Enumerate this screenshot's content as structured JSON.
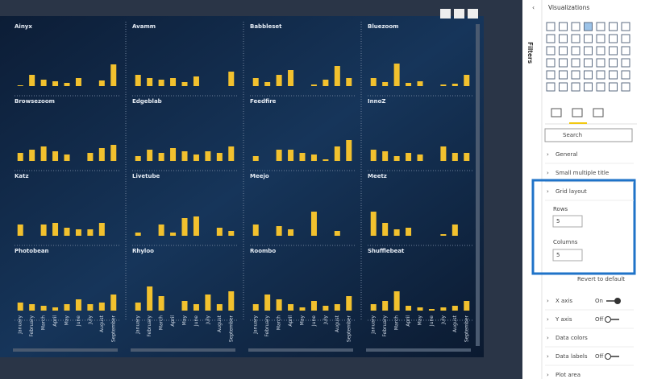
{
  "chart_data": {
    "type": "bar",
    "color": "#f2c12e",
    "categories": [
      "January",
      "February",
      "March",
      "April",
      "May",
      "June",
      "July",
      "August",
      "September"
    ],
    "series": [
      {
        "name": "Ainyx",
        "values": [
          1,
          14,
          8,
          6,
          4,
          10,
          0,
          7,
          27
        ]
      },
      {
        "name": "Avamm",
        "values": [
          14,
          10,
          8,
          10,
          5,
          12,
          0,
          0,
          18
        ]
      },
      {
        "name": "Babbleset",
        "values": [
          10,
          5,
          14,
          20,
          0,
          2,
          8,
          25,
          10
        ]
      },
      {
        "name": "Bluezoom",
        "values": [
          10,
          5,
          28,
          4,
          6,
          0,
          2,
          3,
          14
        ]
      },
      {
        "name": "Browsezoom",
        "values": [
          10,
          14,
          18,
          12,
          8,
          0,
          10,
          16,
          20
        ]
      },
      {
        "name": "Edgeblab",
        "values": [
          6,
          14,
          10,
          16,
          12,
          8,
          12,
          10,
          18
        ]
      },
      {
        "name": "Feedfire",
        "values": [
          6,
          0,
          14,
          14,
          10,
          8,
          2,
          18,
          26
        ]
      },
      {
        "name": "InnoZ",
        "values": [
          14,
          12,
          6,
          10,
          8,
          0,
          18,
          10,
          10
        ]
      },
      {
        "name": "Katz",
        "values": [
          14,
          0,
          14,
          16,
          10,
          8,
          8,
          16,
          0
        ]
      },
      {
        "name": "Livetube",
        "values": [
          4,
          0,
          14,
          4,
          22,
          24,
          0,
          10,
          6
        ]
      },
      {
        "name": "Meejo",
        "values": [
          14,
          0,
          12,
          8,
          0,
          30,
          0,
          6,
          0
        ]
      },
      {
        "name": "Meetz",
        "values": [
          30,
          16,
          8,
          10,
          0,
          0,
          2,
          14,
          0
        ]
      },
      {
        "name": "Photobean",
        "values": [
          10,
          8,
          6,
          4,
          8,
          14,
          8,
          10,
          20
        ]
      },
      {
        "name": "Rhyloo",
        "values": [
          10,
          30,
          18,
          0,
          12,
          8,
          20,
          8,
          24
        ]
      },
      {
        "name": "Roombo",
        "values": [
          8,
          20,
          14,
          8,
          4,
          12,
          6,
          8,
          18
        ]
      },
      {
        "name": "Shufflebeat",
        "values": [
          8,
          12,
          24,
          6,
          4,
          2,
          4,
          6,
          12
        ]
      }
    ]
  },
  "pane": {
    "title": "Visualizations",
    "filters": "Filters",
    "search": "Search",
    "sections": {
      "general": "General",
      "small_multiple_title": "Small multiple title",
      "grid_layout": "Grid layout",
      "rows_label": "Rows",
      "rows_value": "5",
      "columns_label": "Columns",
      "columns_value": "5",
      "revert": "Revert to default",
      "x_axis": "X axis",
      "x_axis_state": "On",
      "y_axis": "Y axis",
      "y_axis_state": "Off",
      "data_colors": "Data colors",
      "data_labels": "Data labels",
      "data_labels_state": "Off",
      "plot_area": "Plot area"
    }
  }
}
